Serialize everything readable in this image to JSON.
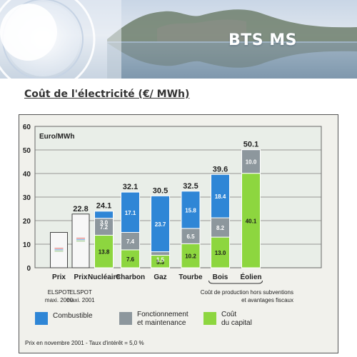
{
  "banner": {
    "title": "BTS MS"
  },
  "heading": "Coût de l'électricité (€/ MWh)",
  "chart_data": {
    "type": "bar",
    "stacked": true,
    "unit_label": "Euro/MWh",
    "ylim": [
      0,
      60
    ],
    "yticks": [
      0,
      10,
      20,
      30,
      40,
      50,
      60
    ],
    "grid": true,
    "categories": [
      {
        "label": "Prix",
        "sublabel": [
          "ELSPOT",
          "maxi. 2000"
        ],
        "total": null
      },
      {
        "label": "Prix",
        "sublabel": [
          "ELSPOT",
          "maxi. 2001"
        ],
        "total": "22.8"
      },
      {
        "label": "Nucléaire",
        "sublabel": [],
        "total": "24.1"
      },
      {
        "label": "Charbon",
        "sublabel": [],
        "total": "32.1"
      },
      {
        "label": "Gaz",
        "sublabel": [],
        "total": "30.5"
      },
      {
        "label": "Tourbe",
        "sublabel": [],
        "total": "32.5"
      },
      {
        "label": "Bois",
        "sublabel": [],
        "total": "39.6"
      },
      {
        "label": "Éolien",
        "sublabel": [],
        "total": "50.1"
      }
    ],
    "price_bars": [
      15,
      22.8
    ],
    "series": [
      {
        "name": "Coût du capital",
        "legend": [
          "Coût",
          "du capital"
        ],
        "color": "#8dd63f",
        "values": [
          null,
          null,
          13.8,
          7.6,
          5.3,
          10.2,
          13.0,
          40.1
        ],
        "labels": [
          null,
          null,
          "13.8",
          "7.6",
          "5.3",
          "10.2",
          "13.0",
          "40.1"
        ]
      },
      {
        "name": "Fonctionnement et maintenance",
        "legend": [
          "Fonctionnement",
          "et maintenance"
        ],
        "color": "#8d979d",
        "values": [
          null,
          null,
          7.2,
          7.4,
          1.5,
          6.5,
          8.2,
          10.0
        ],
        "labels": [
          null,
          null,
          "7.2",
          "7.4",
          "1.5",
          "6.5",
          "8.2",
          "10.0"
        ]
      },
      {
        "name": "Combustible",
        "legend": [
          "Combustible"
        ],
        "color": "#2f86d6",
        "values": [
          null,
          null,
          3.0,
          17.1,
          23.7,
          15.8,
          18.4,
          0
        ],
        "labels": [
          null,
          null,
          "3.0",
          "17.1",
          "23.7",
          "15.8",
          "18.4",
          null
        ]
      }
    ],
    "annotation": [
      "Coût de production hors subventions",
      "et avantages fiscaux"
    ],
    "footnote": "Prix en novembre 2001 - Taux d'intérêt = 5,0 %"
  }
}
